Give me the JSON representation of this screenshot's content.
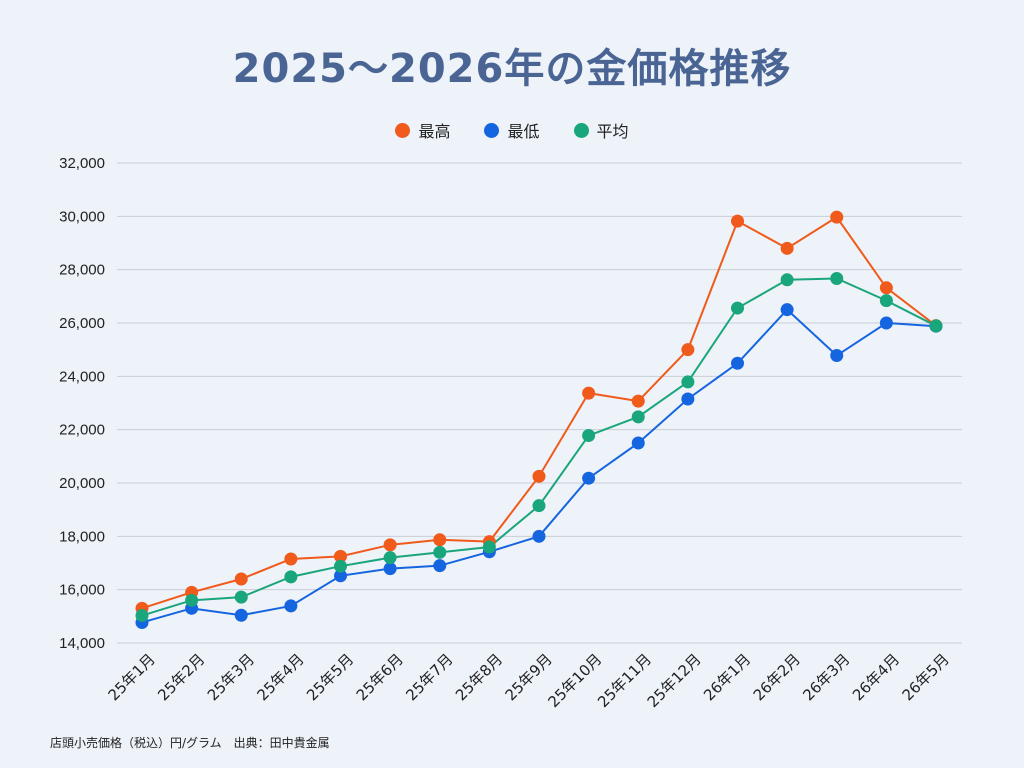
{
  "title": "2025〜2026年の金価格推移",
  "footer": "店頭小売価格（税込）円/グラム　出典：田中貴金属",
  "chart_data": {
    "type": "line",
    "title": "2025〜2026年の金価格推移",
    "categories": [
      "25年1月",
      "25年2月",
      "25年3月",
      "25年4月",
      "25年5月",
      "25年6月",
      "25年7月",
      "25年8月",
      "25年9月",
      "25年10月",
      "25年11月",
      "25年12月",
      "26年1月",
      "26年2月",
      "26年3月",
      "26年4月",
      "26年5月"
    ],
    "series": [
      {
        "name": "最高",
        "color": "#f05a1a",
        "values": [
          15300,
          15900,
          16400,
          17150,
          17250,
          17680,
          17870,
          17800,
          20250,
          23370,
          23070,
          25000,
          29820,
          28800,
          29970,
          27320,
          25900
        ]
      },
      {
        "name": "最低",
        "color": "#1565e0",
        "values": [
          14770,
          15300,
          15040,
          15390,
          16520,
          16790,
          16900,
          17420,
          18000,
          20180,
          21500,
          23150,
          24490,
          26500,
          24780,
          26000,
          25880
        ]
      },
      {
        "name": "平均",
        "color": "#1aa67c",
        "values": [
          15030,
          15600,
          15720,
          16480,
          16880,
          17200,
          17400,
          17600,
          19150,
          21780,
          22480,
          23790,
          26560,
          27620,
          27670,
          26840,
          25890
        ]
      }
    ],
    "yticks": [
      "14,000",
      "16,000",
      "18,000",
      "20,000",
      "22,000",
      "24,000",
      "26,000",
      "28,000",
      "30,000",
      "32,000"
    ],
    "ylim": [
      14000,
      32000
    ],
    "grid": true,
    "legend_position": "top-center"
  }
}
